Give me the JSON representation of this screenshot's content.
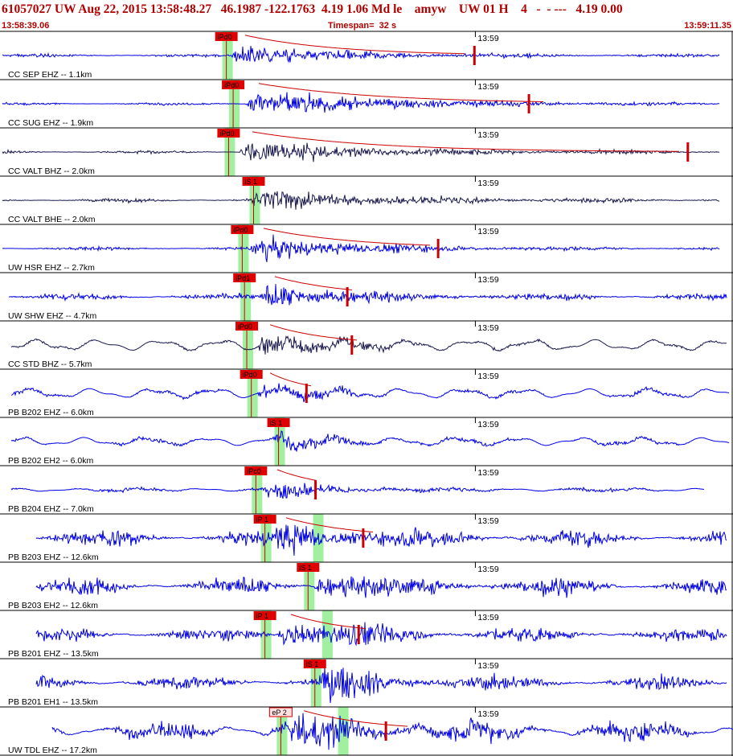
{
  "header": {
    "title": "61057027 UW Aug 22, 2015 13:58:48.27   46.1987 -122.1763  4.19 1.06 Md le    amyw    UW 01 H    4   -  - ---   4.19 0.00",
    "start_time": "13:58:39.06",
    "timespan": "Timespan=  32 s",
    "end_time": "13:59:11.35"
  },
  "colors": {
    "trace": "#0000e6",
    "trace_dark": "#1a1a50",
    "pick_bg": "#e00000",
    "pick_outline_bg": "#ffe0e0",
    "coda": "#cc0000",
    "window": "#a0f0a0",
    "grid": "#000000"
  },
  "chart_data": {
    "type": "line",
    "title": "61057027 UW Aug 22, 2015 13:58:48.27",
    "x_range_seconds": [
      0,
      32.29
    ],
    "time_mark_label": "13:59",
    "time_mark_offset_s": 20.94,
    "tick_label": "13:59",
    "traces": [
      {
        "label": "CC SEP EHZ -- 1.1km",
        "pick": "iPd0",
        "pick_time_s": 9.9,
        "s_time_s": null,
        "amp": 0.3,
        "noise": 0.05,
        "onset_s": 10.2,
        "decay_s": 4.5,
        "end_s": 31.7,
        "start_s": 0.1,
        "coda_end_s": 20.5,
        "coda_mark_s": 20.9,
        "dark": false,
        "lp": 0.0
      },
      {
        "label": "CC SUG EHZ -- 1.9km",
        "pick": "iPd0",
        "pick_time_s": 10.2,
        "s_time_s": null,
        "amp": 0.38,
        "noise": 0.04,
        "onset_s": 10.8,
        "decay_s": 6.0,
        "end_s": 31.7,
        "start_s": 0.1,
        "coda_end_s": 24.0,
        "coda_mark_s": 23.3,
        "dark": false,
        "lp": 0.0
      },
      {
        "label": "CC VALT BHZ -- 2.0km",
        "pick": "iPd0",
        "pick_time_s": 10.0,
        "s_time_s": null,
        "amp": 0.3,
        "noise": 0.05,
        "onset_s": 10.5,
        "decay_s": 6.0,
        "end_s": 31.7,
        "start_s": 0.1,
        "coda_end_s": 30.0,
        "coda_mark_s": 30.3,
        "dark": true,
        "lp": 0.0
      },
      {
        "label": "CC VALT BHE -- 2.0km",
        "pick": "iS 1",
        "pick_time_s": 11.1,
        "s_time_s": null,
        "amp": 0.28,
        "noise": 0.06,
        "onset_s": 11.0,
        "decay_s": 5.5,
        "end_s": 31.7,
        "start_s": 0.1,
        "coda_end_s": null,
        "coda_mark_s": null,
        "dark": true,
        "lp": 0.0
      },
      {
        "label": "UW HSR EHZ -- 2.7km",
        "pick": "iPd0",
        "pick_time_s": 10.6,
        "s_time_s": null,
        "amp": 0.38,
        "noise": 0.05,
        "onset_s": 11.0,
        "decay_s": 4.5,
        "end_s": 31.7,
        "start_s": 0.1,
        "coda_end_s": 19.0,
        "coda_mark_s": 19.3,
        "dark": false,
        "lp": 0.0
      },
      {
        "label": "UW SHW EHZ -- 4.7km",
        "pick": "iPd1",
        "pick_time_s": 10.7,
        "s_time_s": null,
        "amp": 0.38,
        "noise": 0.1,
        "onset_s": 11.5,
        "decay_s": 3.5,
        "end_s": 32.0,
        "start_s": 0.4,
        "coda_end_s": 15.6,
        "coda_mark_s": 15.3,
        "dark": false,
        "lp": 0.0
      },
      {
        "label": "CC STD BHZ -- 5.7km",
        "pick": "iPd0",
        "pick_time_s": 10.8,
        "s_time_s": null,
        "amp": 0.36,
        "noise": 0.04,
        "onset_s": 11.3,
        "decay_s": 3.0,
        "end_s": 32.0,
        "start_s": 0.5,
        "coda_end_s": 15.8,
        "coda_mark_s": 15.5,
        "dark": true,
        "lp": 0.08
      },
      {
        "label": "PB B202 EHZ -- 6.0km",
        "pick": "iPd0",
        "pick_time_s": 11.0,
        "s_time_s": null,
        "amp": 0.3,
        "noise": 0.06,
        "onset_s": 11.3,
        "decay_s": 2.0,
        "end_s": 32.1,
        "start_s": 0.5,
        "coda_end_s": 13.8,
        "coda_mark_s": 13.5,
        "dark": false,
        "lp": 0.07
      },
      {
        "label": "PB B202 EH2 -- 6.0km",
        "pick": "iS 1",
        "pick_time_s": 12.2,
        "s_time_s": null,
        "amp": 0.28,
        "noise": 0.06,
        "onset_s": 12.0,
        "decay_s": 2.5,
        "end_s": 32.1,
        "start_s": 0.5,
        "coda_end_s": null,
        "coda_mark_s": null,
        "dark": false,
        "lp": 0.06
      },
      {
        "label": "PB B204 EHZ -- 7.0km",
        "pick": "iPc0",
        "pick_time_s": 11.2,
        "s_time_s": null,
        "amp": 0.3,
        "noise": 0.06,
        "onset_s": 11.6,
        "decay_s": 2.5,
        "end_s": 31.0,
        "start_s": 0.5,
        "coda_end_s": 14.0,
        "coda_mark_s": 13.9,
        "dark": false,
        "lp": 0.02
      },
      {
        "label": "PB B203 EHZ -- 12.6km",
        "pick": "iP 1",
        "pick_time_s": 11.6,
        "s_time_s": 13.9,
        "amp": 0.38,
        "noise": 0.25,
        "onset_s": 12.0,
        "decay_s": 3.5,
        "end_s": 32.0,
        "start_s": 1.6,
        "coda_end_s": 16.5,
        "coda_mark_s": 16.0,
        "dark": false,
        "lp": 0.0
      },
      {
        "label": "PB B203 EH2 -- 12.6km",
        "pick": "iS 1",
        "pick_time_s": 13.5,
        "s_time_s": null,
        "amp": 0.38,
        "noise": 0.25,
        "onset_s": 13.8,
        "decay_s": 3.0,
        "end_s": 32.0,
        "start_s": 1.6,
        "coda_end_s": null,
        "coda_mark_s": null,
        "dark": false,
        "lp": 0.0
      },
      {
        "label": "PB B201 EHZ -- 13.5km",
        "pick": "iP 1",
        "pick_time_s": 11.6,
        "s_time_s": 14.3,
        "amp": 0.38,
        "noise": 0.22,
        "onset_s": 12.2,
        "decay_s": 3.0,
        "end_s": 32.0,
        "start_s": 1.6,
        "coda_end_s": 16.2,
        "coda_mark_s": 15.8,
        "dark": false,
        "lp": 0.0
      },
      {
        "label": "PB B201 EH1 -- 13.5km",
        "pick": "iS 1",
        "pick_time_s": 13.8,
        "s_time_s": null,
        "amp": 0.38,
        "noise": 0.22,
        "onset_s": 14.0,
        "decay_s": 3.0,
        "end_s": 32.0,
        "start_s": 1.6,
        "coda_end_s": null,
        "coda_mark_s": null,
        "dark": false,
        "lp": 0.0
      },
      {
        "label": "UW TDL EHZ -- 17.2km",
        "pick": "eP 2",
        "pick_time_s": 12.3,
        "s_time_s": 15.0,
        "amp": 0.42,
        "noise": 0.28,
        "onset_s": 12.8,
        "decay_s": 3.5,
        "end_s": 32.3,
        "start_s": 2.3,
        "coda_end_s": 18.0,
        "coda_mark_s": 17.0,
        "dark": false,
        "lp": 0.05
      }
    ]
  }
}
